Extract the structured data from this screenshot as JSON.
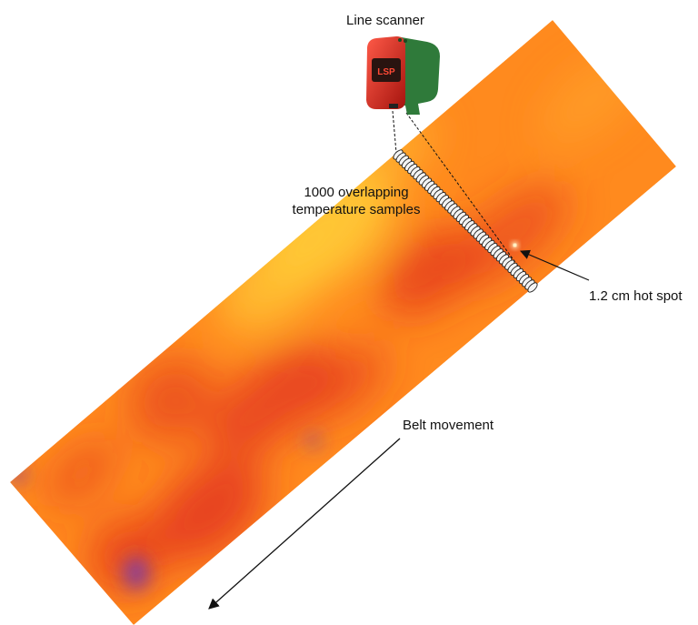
{
  "labels": {
    "scanner": "Line scanner",
    "samples_line1": "1000 overlapping",
    "samples_line2": "temperature samples",
    "hot_spot": "1.2 cm hot spot",
    "belt": "Belt movement"
  },
  "device": {
    "logo_text": "LSP",
    "body_color": "#d42a20",
    "housing_color": "#2f7a3a",
    "screen_color": "#2a1410"
  },
  "thermal": {
    "base_color": "#ff8a1e",
    "warm_color": "#ffc836",
    "cool_color": "#e1311f",
    "cold_color": "#7a3aa8",
    "hot_spot_color": "#fff1c4"
  },
  "sample_count_drawn": 48
}
